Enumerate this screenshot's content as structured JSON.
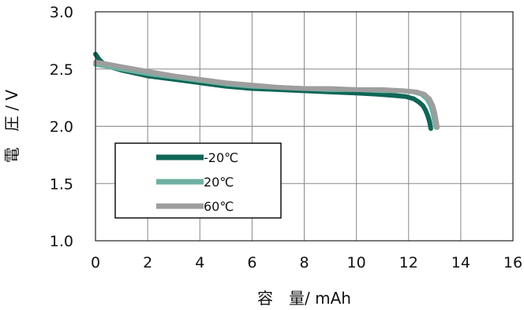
{
  "chart_data": {
    "type": "line",
    "xlabel": "容　量/ mAh",
    "ylabel": "電　圧 / V",
    "xlim": [
      0,
      16
    ],
    "ylim": [
      1.0,
      3.0
    ],
    "x_ticks": [
      "0",
      "2",
      "4",
      "6",
      "8",
      "10",
      "12",
      "14",
      "16"
    ],
    "y_ticks": [
      "1.0",
      "1.5",
      "2.0",
      "2.5",
      "3.0"
    ],
    "grid": true,
    "legend_position": "lower-left",
    "series": [
      {
        "name": "-20℃",
        "color": "#0f6656",
        "x": [
          0,
          0.15,
          0.4,
          1,
          2,
          3,
          4,
          5,
          6,
          7,
          8,
          9,
          10,
          10.8,
          11.4,
          11.9,
          12.2,
          12.4,
          12.55,
          12.65,
          12.72,
          12.78,
          12.82,
          12.85
        ],
        "y": [
          2.63,
          2.58,
          2.53,
          2.49,
          2.44,
          2.41,
          2.38,
          2.35,
          2.33,
          2.32,
          2.31,
          2.3,
          2.29,
          2.28,
          2.27,
          2.26,
          2.24,
          2.21,
          2.18,
          2.14,
          2.1,
          2.06,
          2.02,
          1.98
        ]
      },
      {
        "name": "20℃",
        "color": "#6fb0a2",
        "x": [
          0,
          0.3,
          1,
          2,
          3,
          4,
          5,
          6,
          7,
          8,
          9,
          10,
          11,
          11.8,
          12.2,
          12.5,
          12.7,
          12.85,
          12.93,
          12.98,
          13.02,
          13.05
        ],
        "y": [
          2.54,
          2.53,
          2.5,
          2.46,
          2.43,
          2.4,
          2.37,
          2.35,
          2.34,
          2.33,
          2.32,
          2.32,
          2.31,
          2.31,
          2.3,
          2.28,
          2.24,
          2.18,
          2.12,
          2.06,
          2.02,
          1.99
        ]
      },
      {
        "name": "60℃",
        "color": "#9e9e9e",
        "x": [
          0,
          0.3,
          1,
          2,
          3,
          4,
          5,
          6,
          7,
          8,
          9,
          10,
          11,
          11.8,
          12.3,
          12.6,
          12.8,
          12.93,
          13.0,
          13.05,
          13.08,
          13.1
        ],
        "y": [
          2.56,
          2.55,
          2.52,
          2.48,
          2.44,
          2.41,
          2.38,
          2.36,
          2.34,
          2.33,
          2.33,
          2.32,
          2.32,
          2.31,
          2.3,
          2.28,
          2.24,
          2.18,
          2.12,
          2.06,
          2.02,
          1.99
        ]
      }
    ]
  }
}
